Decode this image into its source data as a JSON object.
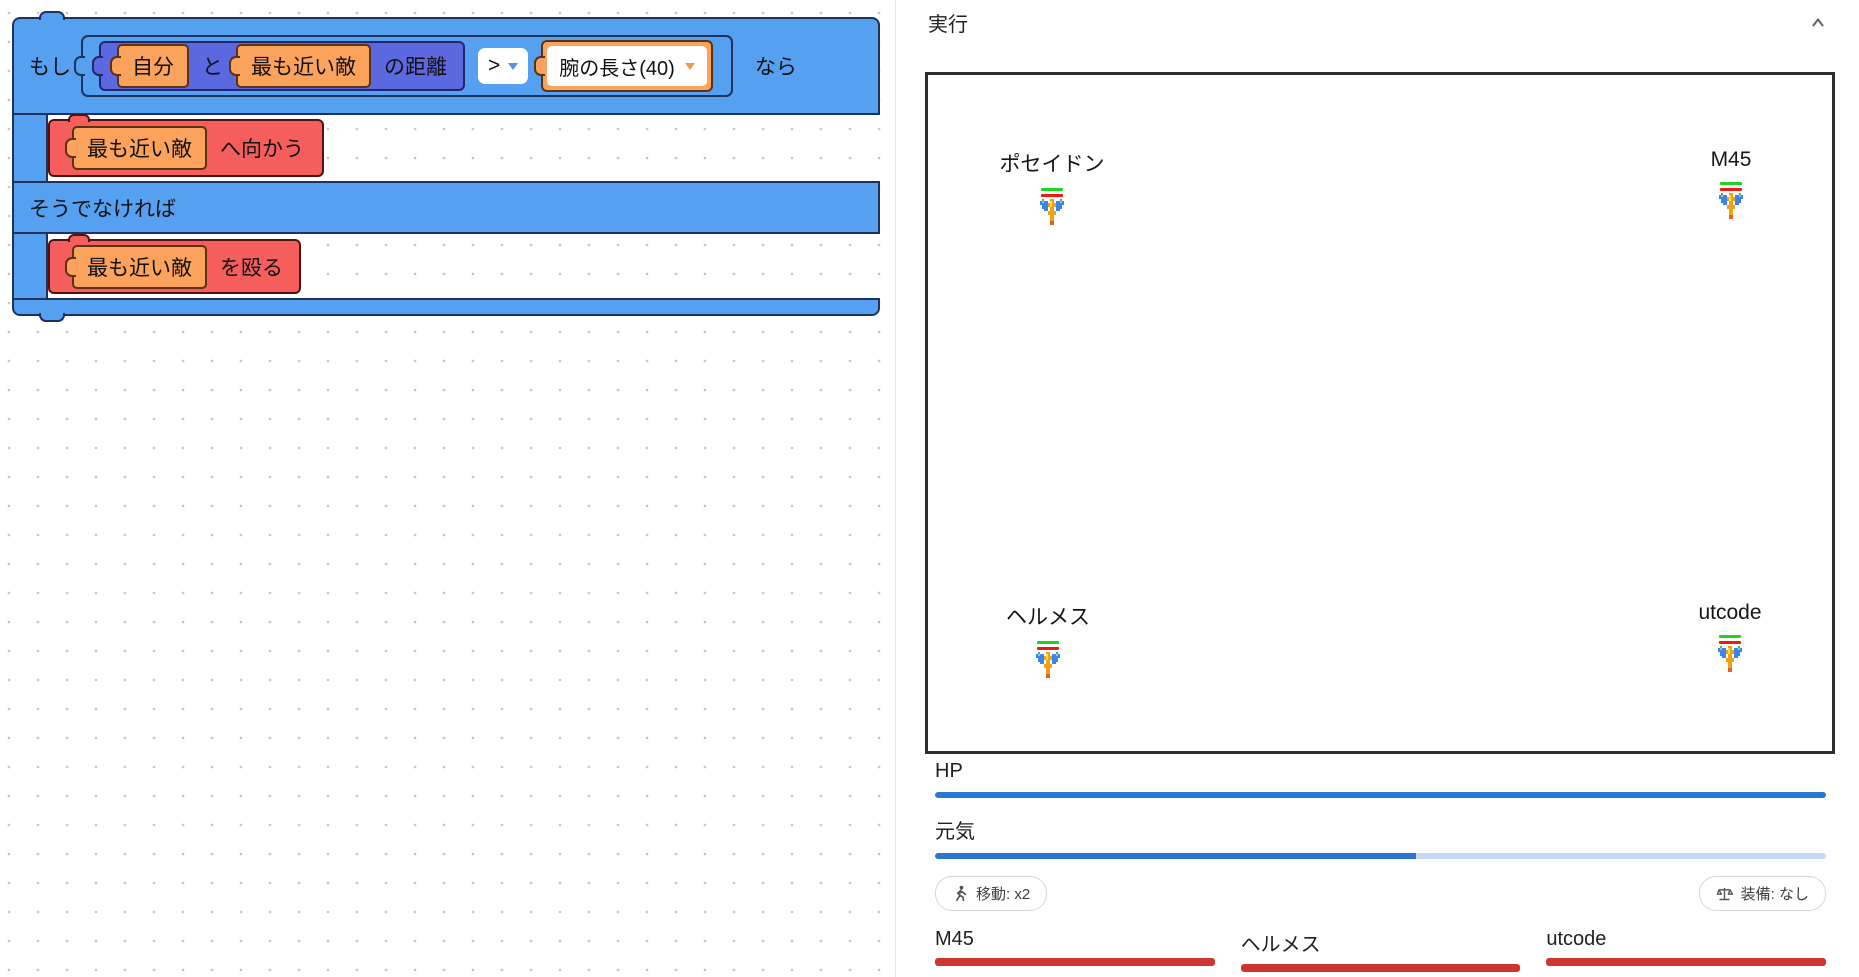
{
  "blockly": {
    "if_label": "もし",
    "then_label": "なら",
    "else_label": "そうでなければ",
    "condition": {
      "self": "自分",
      "and": "と",
      "nearest_enemy": "最も近い敵",
      "distance_suffix": "の距離",
      "operator": ">",
      "threshold": "腕の長さ(40)"
    },
    "then_statement": {
      "target": "最も近い敵",
      "action": "へ向かう"
    },
    "else_statement": {
      "target": "最も近い敵",
      "action": "を殴る"
    }
  },
  "panel": {
    "title": "実行",
    "field_players": [
      {
        "name": "ポセイドン"
      },
      {
        "name": "M45"
      },
      {
        "name": "ヘルメス"
      },
      {
        "name": "utcode"
      }
    ],
    "stats": {
      "hp_label": "HP",
      "hp_percent": 100,
      "energy_label": "元気",
      "energy_percent": 54,
      "move_button": "移動: x2",
      "equip_button": "装備: なし"
    },
    "opponents": [
      {
        "name": "M45",
        "hp_percent": 100
      },
      {
        "name": "ヘルメス",
        "hp_percent": 100
      },
      {
        "name": "utcode",
        "hp_percent": 100
      }
    ]
  },
  "colors": {
    "block_blue": "#55a0f0",
    "block_violet": "#5b68e0",
    "block_orange": "#fba25c",
    "block_red": "#f65e5e",
    "bar_blue": "#2b77d2",
    "bar_blue_track": "#c5d9f4",
    "bar_red": "#cf3630",
    "sprite_green": "#1fd61f",
    "sprite_red": "#ea1c16"
  }
}
